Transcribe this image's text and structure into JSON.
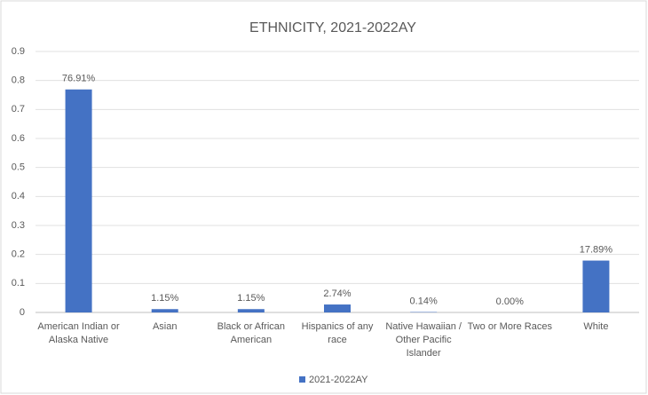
{
  "chart_data": {
    "type": "bar",
    "title": "ETHNICITY, 2021-2022AY",
    "categories": [
      "American Indian or Alaska Native",
      "Asian",
      "Black or African American",
      "Hispanics of any race",
      "Native Hawaiian / Other Pacific Islander",
      "Two or More Races",
      "White"
    ],
    "series": [
      {
        "name": "2021-2022AY",
        "color": "#4472c4",
        "values": [
          0.7691,
          0.0115,
          0.0115,
          0.0274,
          0.0014,
          0,
          0.1789
        ],
        "value_labels": [
          "76.91%",
          "1.15%",
          "1.15%",
          "2.74%",
          "0.14%",
          "0.00%",
          "17.89%"
        ]
      }
    ],
    "ylim": [
      0,
      0.9
    ],
    "yticks": [
      0,
      0.1,
      0.2,
      0.3,
      0.4,
      0.5,
      0.6,
      0.7,
      0.8,
      0.9
    ],
    "grid": true,
    "legend": "bottom"
  }
}
